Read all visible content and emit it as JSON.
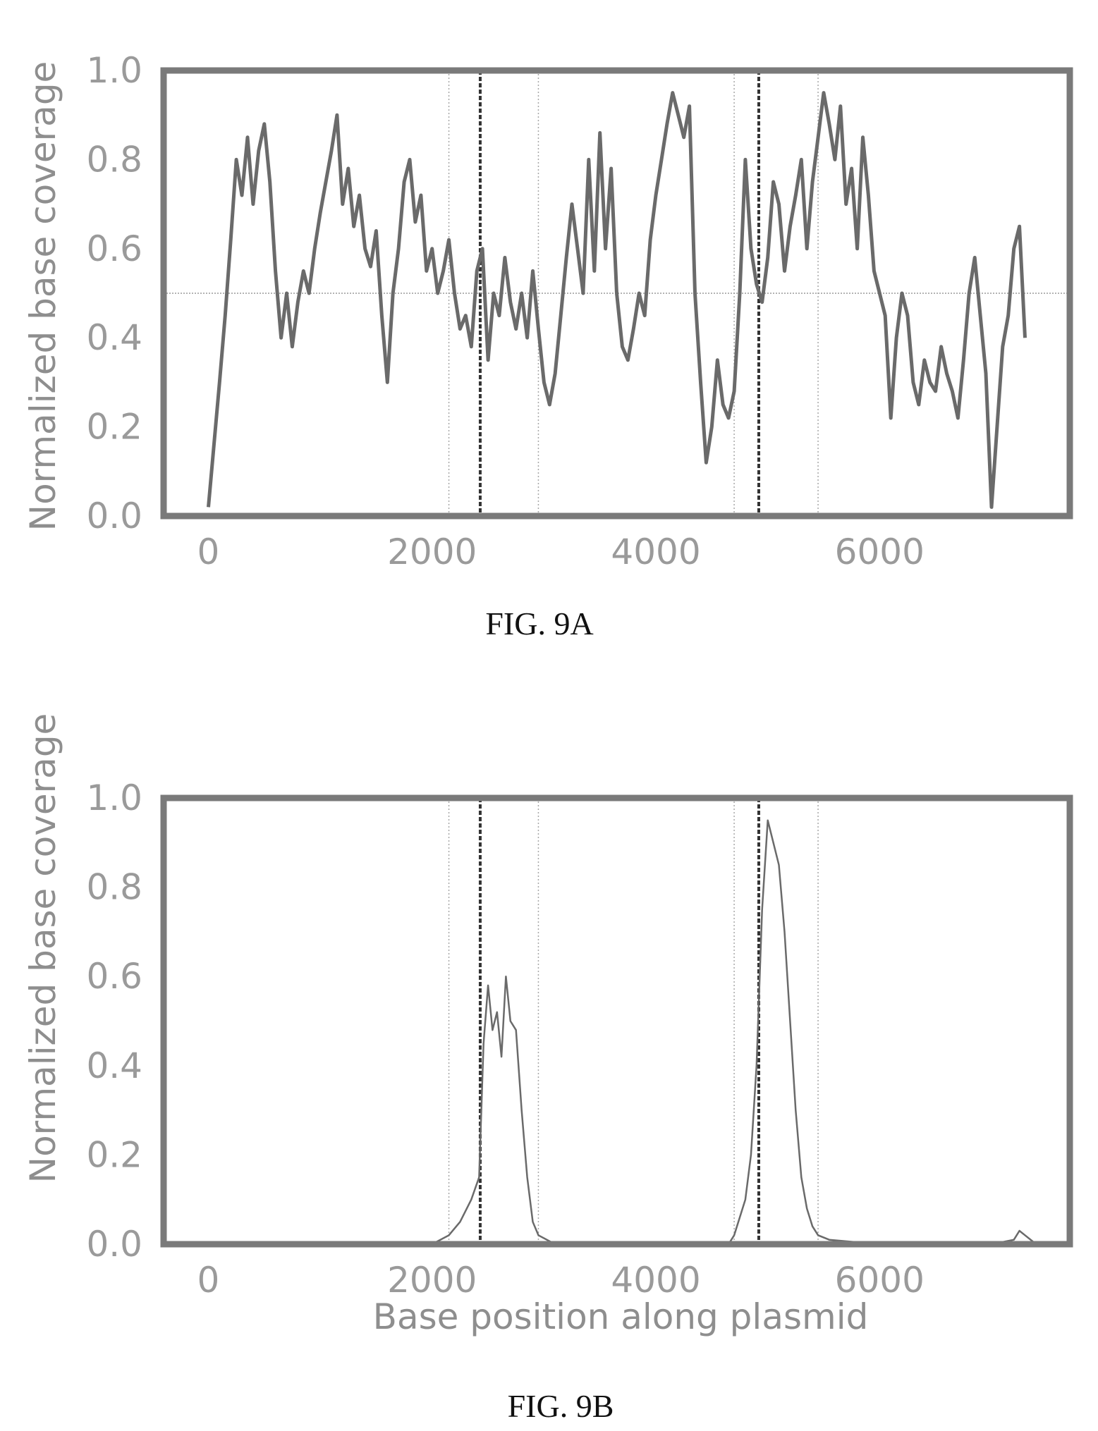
{
  "chart_data": [
    {
      "type": "line",
      "caption": "FIG. 9A",
      "xlabel": "",
      "ylabel": "Normalized base coverage",
      "xlim": [
        -400,
        7700
      ],
      "ylim": [
        0.0,
        1.0
      ],
      "x_ticks": [
        "0",
        "2000",
        "4000",
        "6000"
      ],
      "x_tick_values": [
        0,
        2000,
        4000,
        6000
      ],
      "y_ticks": [
        "0.0",
        "0.2",
        "0.4",
        "0.6",
        "0.8",
        "1.0"
      ],
      "y_tick_values": [
        0.0,
        0.2,
        0.4,
        0.6,
        0.8,
        1.0
      ],
      "grid": false,
      "hlines": [
        {
          "y": 0.5,
          "style": "dotted"
        }
      ],
      "vlines": [
        {
          "x": 2150,
          "style": "dotted"
        },
        {
          "x": 2430,
          "style": "dashed"
        },
        {
          "x": 2950,
          "style": "dotted"
        },
        {
          "x": 4700,
          "style": "dotted"
        },
        {
          "x": 4920,
          "style": "dashed"
        },
        {
          "x": 5450,
          "style": "dotted"
        }
      ],
      "series": [
        {
          "x": [
            0,
            100,
            150,
            200,
            250,
            300,
            350,
            400,
            450,
            500,
            550,
            600,
            650,
            700,
            750,
            800,
            850,
            900,
            950,
            1000,
            1100,
            1150,
            1200,
            1250,
            1300,
            1350,
            1400,
            1450,
            1500,
            1550,
            1600,
            1650,
            1700,
            1750,
            1800,
            1850,
            1900,
            1950,
            2000,
            2050,
            2100,
            2150,
            2200,
            2250,
            2300,
            2350,
            2400,
            2450,
            2500,
            2550,
            2600,
            2650,
            2700,
            2750,
            2800,
            2850,
            2900,
            2950,
            3000,
            3050,
            3100,
            3150,
            3200,
            3250,
            3300,
            3350,
            3400,
            3450,
            3500,
            3550,
            3600,
            3650,
            3700,
            3750,
            3800,
            3850,
            3900,
            3950,
            4000,
            4050,
            4100,
            4150,
            4200,
            4250,
            4300,
            4350,
            4400,
            4450,
            4500,
            4550,
            4600,
            4650,
            4700,
            4750,
            4800,
            4850,
            4900,
            4950,
            5000,
            5050,
            5100,
            5150,
            5200,
            5250,
            5300,
            5350,
            5400,
            5450,
            5500,
            5550,
            5600,
            5650,
            5700,
            5750,
            5800,
            5850,
            5900,
            5950,
            6000,
            6050,
            6100,
            6150,
            6200,
            6250,
            6300,
            6350,
            6400,
            6450,
            6500,
            6550,
            6600,
            6650,
            6700,
            6750,
            6800,
            6850,
            6900,
            6950,
            7000,
            7050,
            7100,
            7150,
            7200,
            7250,
            7300
          ],
          "y": [
            0.02,
            0.3,
            0.45,
            0.62,
            0.8,
            0.72,
            0.85,
            0.7,
            0.82,
            0.88,
            0.75,
            0.55,
            0.4,
            0.5,
            0.38,
            0.48,
            0.55,
            0.5,
            0.6,
            0.68,
            0.82,
            0.9,
            0.7,
            0.78,
            0.65,
            0.72,
            0.6,
            0.56,
            0.64,
            0.45,
            0.3,
            0.5,
            0.6,
            0.75,
            0.8,
            0.66,
            0.72,
            0.55,
            0.6,
            0.5,
            0.55,
            0.62,
            0.5,
            0.42,
            0.45,
            0.38,
            0.55,
            0.6,
            0.35,
            0.5,
            0.45,
            0.58,
            0.48,
            0.42,
            0.5,
            0.4,
            0.55,
            0.42,
            0.3,
            0.25,
            0.32,
            0.45,
            0.58,
            0.7,
            0.6,
            0.5,
            0.8,
            0.55,
            0.86,
            0.6,
            0.78,
            0.5,
            0.38,
            0.35,
            0.42,
            0.5,
            0.45,
            0.62,
            0.72,
            0.8,
            0.88,
            0.95,
            0.9,
            0.85,
            0.92,
            0.5,
            0.3,
            0.12,
            0.2,
            0.35,
            0.25,
            0.22,
            0.28,
            0.5,
            0.8,
            0.6,
            0.52,
            0.48,
            0.58,
            0.75,
            0.7,
            0.55,
            0.65,
            0.72,
            0.8,
            0.6,
            0.75,
            0.85,
            0.95,
            0.88,
            0.8,
            0.92,
            0.7,
            0.78,
            0.6,
            0.85,
            0.72,
            0.55,
            0.5,
            0.45,
            0.22,
            0.4,
            0.5,
            0.45,
            0.3,
            0.25,
            0.35,
            0.3,
            0.28,
            0.38,
            0.32,
            0.28,
            0.22,
            0.35,
            0.5,
            0.58,
            0.45,
            0.32,
            0.02,
            0.2,
            0.38,
            0.45,
            0.6,
            0.65,
            0.4
          ]
        }
      ]
    },
    {
      "type": "line",
      "caption": "FIG. 9B",
      "xlabel": "Base position along plasmid",
      "ylabel": "Normalized base coverage",
      "xlim": [
        -400,
        7700
      ],
      "ylim": [
        0.0,
        1.0
      ],
      "x_ticks": [
        "0",
        "2000",
        "4000",
        "6000"
      ],
      "x_tick_values": [
        0,
        2000,
        4000,
        6000
      ],
      "y_ticks": [
        "0.0",
        "0.2",
        "0.4",
        "0.6",
        "0.8",
        "1.0"
      ],
      "y_tick_values": [
        0.0,
        0.2,
        0.4,
        0.6,
        0.8,
        1.0
      ],
      "grid": false,
      "vlines": [
        {
          "x": 2150,
          "style": "dotted"
        },
        {
          "x": 2430,
          "style": "dashed"
        },
        {
          "x": 2950,
          "style": "dotted"
        },
        {
          "x": 4700,
          "style": "dotted"
        },
        {
          "x": 4920,
          "style": "dashed"
        },
        {
          "x": 5450,
          "style": "dotted"
        }
      ],
      "series": [
        {
          "x": [
            0,
            1000,
            2000,
            2150,
            2250,
            2350,
            2420,
            2460,
            2500,
            2540,
            2580,
            2620,
            2660,
            2700,
            2750,
            2800,
            2850,
            2900,
            2950,
            3100,
            4000,
            4650,
            4700,
            4750,
            4800,
            4850,
            4900,
            4950,
            5000,
            5050,
            5100,
            5150,
            5200,
            5250,
            5300,
            5350,
            5400,
            5450,
            5550,
            6000,
            7000,
            7200,
            7250,
            7300,
            7400
          ],
          "y": [
            0.0,
            0.0,
            0.0,
            0.02,
            0.05,
            0.1,
            0.15,
            0.45,
            0.58,
            0.48,
            0.52,
            0.42,
            0.6,
            0.5,
            0.48,
            0.3,
            0.15,
            0.05,
            0.02,
            0.0,
            0.0,
            0.0,
            0.02,
            0.06,
            0.1,
            0.2,
            0.4,
            0.75,
            0.95,
            0.9,
            0.85,
            0.7,
            0.5,
            0.3,
            0.15,
            0.08,
            0.04,
            0.02,
            0.01,
            0.0,
            0.0,
            0.01,
            0.03,
            0.02,
            0.0
          ]
        }
      ]
    }
  ]
}
